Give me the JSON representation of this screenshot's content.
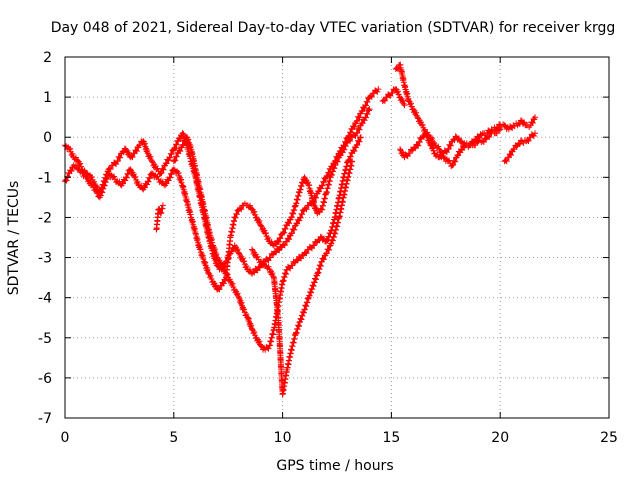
{
  "chart_data": {
    "type": "scatter",
    "title": "Day 048 of 2021, Sidereal Day-to-day VTEC variation (SDTVAR) for receiver krgg",
    "xlabel": "GPS time / hours",
    "ylabel": "SDTVAR / TECUs",
    "xlim": [
      0,
      25
    ],
    "ylim": [
      -7,
      2
    ],
    "xticks": [
      0,
      5,
      10,
      15,
      20,
      25
    ],
    "yticks": [
      -7,
      -6,
      -5,
      -4,
      -3,
      -2,
      -1,
      0,
      1,
      2
    ],
    "grid": true,
    "legend": "none",
    "marker": "plus",
    "color": "#ff0000",
    "series": [
      {
        "x": [
          0.0,
          0.2,
          0.4,
          0.6,
          0.8,
          1.0,
          1.2,
          1.4,
          1.6,
          1.8,
          2.0,
          2.2,
          2.4,
          2.6,
          2.8,
          3.0,
          3.2,
          3.4,
          3.6,
          3.8,
          4.0,
          4.2,
          4.4,
          4.6,
          4.8,
          5.0,
          5.2,
          5.4,
          5.6,
          5.8,
          6.0,
          6.2,
          6.4,
          6.6,
          6.8,
          7.0,
          7.2,
          7.4,
          7.6,
          7.8,
          8.0,
          8.2,
          8.4,
          8.6,
          8.8,
          9.0,
          9.2,
          9.4,
          9.6,
          9.8,
          10.0,
          10.2,
          10.4,
          10.6,
          10.8,
          11.0,
          11.2,
          11.4,
          11.6,
          11.8,
          12.0,
          12.2,
          12.4,
          12.6,
          12.8,
          13.0,
          13.2,
          13.4,
          13.6,
          13.8,
          14.0,
          14.2,
          14.4
        ],
        "y": [
          -0.2,
          -0.3,
          -0.5,
          -0.6,
          -0.8,
          -0.9,
          -1.0,
          -1.2,
          -1.4,
          -1.1,
          -0.8,
          -0.7,
          -0.6,
          -0.4,
          -0.3,
          -0.5,
          -0.4,
          -0.2,
          -0.1,
          -0.4,
          -0.6,
          -0.8,
          -0.9,
          -0.7,
          -0.5,
          -0.3,
          -0.1,
          0.1,
          -0.2,
          -0.6,
          -1.0,
          -1.5,
          -2.0,
          -2.5,
          -2.9,
          -3.2,
          -3.3,
          -3.1,
          -2.9,
          -2.7,
          -2.9,
          -3.1,
          -3.3,
          -3.4,
          -3.3,
          -3.2,
          -3.1,
          -3.0,
          -2.9,
          -2.8,
          -2.7,
          -2.6,
          -2.4,
          -2.2,
          -2.0,
          -1.8,
          -1.7,
          -1.6,
          -1.4,
          -1.2,
          -1.0,
          -0.8,
          -0.6,
          -0.4,
          -0.2,
          0.0,
          0.2,
          0.4,
          0.6,
          0.8,
          1.0,
          1.1,
          1.2
        ]
      },
      {
        "x": [
          0.0,
          0.2,
          0.4,
          0.6,
          0.8,
          1.0,
          1.2,
          1.4,
          1.6,
          1.8,
          2.0,
          2.2,
          2.4,
          2.6,
          2.8,
          3.0,
          3.2,
          3.4,
          3.6,
          3.8,
          4.0,
          4.2,
          4.4,
          4.6,
          4.8,
          5.0,
          5.2,
          5.4,
          5.6,
          5.8,
          6.0,
          6.2,
          6.4,
          6.6,
          6.8,
          7.0,
          7.2,
          7.4,
          7.6,
          7.8,
          8.0,
          8.2,
          8.4,
          8.6,
          8.8,
          9.0,
          9.2,
          9.4,
          9.6,
          9.8,
          10.0,
          10.2,
          10.4,
          10.6,
          10.8,
          11.0,
          11.2,
          11.4,
          11.6,
          11.8,
          12.0,
          12.2,
          12.4,
          12.6,
          12.8,
          13.0,
          13.2,
          13.4,
          13.6,
          13.8,
          14.0
        ],
        "y": [
          -1.1,
          -0.9,
          -0.7,
          -0.8,
          -0.9,
          -1.0,
          -1.2,
          -1.3,
          -1.5,
          -1.2,
          -0.9,
          -1.0,
          -1.1,
          -1.2,
          -1.0,
          -0.8,
          -1.0,
          -1.2,
          -1.3,
          -1.1,
          -0.9,
          -1.0,
          -1.1,
          -1.2,
          -1.0,
          -0.8,
          -0.9,
          -1.2,
          -1.6,
          -2.0,
          -2.4,
          -2.8,
          -3.1,
          -3.4,
          -3.6,
          -3.8,
          -3.7,
          -3.5,
          -2.5,
          -2.0,
          -1.8,
          -1.7,
          -1.7,
          -1.8,
          -2.0,
          -2.2,
          -2.4,
          -2.6,
          -2.7,
          -2.6,
          -2.4,
          -2.2,
          -2.0,
          -1.7,
          -1.3,
          -1.0,
          -1.2,
          -1.6,
          -1.9,
          -1.8,
          -1.4,
          -1.0,
          -0.7,
          -0.5,
          -0.3,
          -0.1,
          0.0,
          0.1,
          0.3,
          0.5,
          0.7
        ]
      },
      {
        "x": [
          5.0,
          5.2,
          5.4,
          5.6,
          5.8,
          6.0,
          6.2,
          6.4,
          6.6,
          6.8,
          7.0,
          7.2,
          7.4,
          7.6,
          7.8,
          8.0,
          8.2,
          8.4,
          8.6,
          8.8,
          9.0,
          9.2,
          9.4,
          9.6,
          9.8,
          10.0,
          10.2,
          10.4,
          10.6,
          10.8,
          11.0,
          11.2,
          11.4,
          11.6,
          11.8,
          12.0,
          12.2,
          12.4,
          12.6,
          12.8,
          13.0,
          13.2,
          13.4,
          13.6
        ],
        "y": [
          -0.6,
          -0.4,
          -0.2,
          0.0,
          -0.3,
          -0.8,
          -1.3,
          -1.8,
          -2.3,
          -2.7,
          -3.0,
          -3.2,
          -3.4,
          -3.6,
          -3.8,
          -4.0,
          -4.3,
          -4.5,
          -4.8,
          -5.0,
          -5.2,
          -5.3,
          -5.2,
          -4.8,
          -4.2,
          -3.6,
          -3.3,
          -3.2,
          -3.1,
          -3.0,
          -2.9,
          -2.8,
          -2.7,
          -2.6,
          -2.5,
          -2.6,
          -2.4,
          -2.0,
          -1.5,
          -1.0,
          -0.6,
          -0.4,
          -0.2,
          0.0
        ]
      },
      {
        "x": [
          8.6,
          8.8,
          9.0,
          9.2,
          9.4,
          9.6,
          9.8,
          10.0,
          10.2,
          10.4,
          10.6,
          10.8,
          11.0,
          11.2,
          11.4,
          11.6,
          11.8,
          12.0,
          12.2,
          12.4,
          12.6,
          12.8,
          13.0,
          13.2
        ],
        "y": [
          -2.8,
          -3.0,
          -3.1,
          -3.2,
          -3.3,
          -3.5,
          -4.5,
          -6.4,
          -5.8,
          -5.3,
          -4.9,
          -4.6,
          -4.3,
          -4.0,
          -3.7,
          -3.4,
          -3.1,
          -2.9,
          -2.7,
          -2.4,
          -2.0,
          -1.5,
          -1.0,
          -0.6
        ]
      },
      {
        "x": [
          15.2,
          15.4,
          15.6,
          15.8,
          16.0,
          16.2,
          16.4,
          16.6,
          16.8,
          17.0,
          17.2,
          17.4,
          17.6,
          17.8,
          18.0,
          18.2,
          18.4,
          18.6,
          18.8,
          19.0,
          19.2,
          19.4,
          19.6,
          19.8,
          20.0,
          20.2,
          20.4,
          20.6,
          20.8,
          21.0,
          21.2,
          21.4,
          21.6
        ],
        "y": [
          1.7,
          1.8,
          1.3,
          0.9,
          0.7,
          0.5,
          0.3,
          0.1,
          -0.2,
          -0.4,
          -0.5,
          -0.4,
          -0.3,
          -0.1,
          0.0,
          -0.1,
          -0.2,
          -0.2,
          -0.1,
          0.0,
          0.1,
          0.1,
          0.2,
          0.2,
          0.3,
          0.3,
          0.2,
          0.3,
          0.3,
          0.4,
          0.3,
          0.3,
          0.5
        ]
      },
      {
        "x": [
          15.4,
          15.6,
          15.8,
          16.0,
          16.2,
          16.4,
          16.6,
          16.8,
          17.0,
          17.2,
          17.4,
          17.6,
          17.8,
          18.0,
          18.2,
          18.4,
          18.6,
          18.8,
          19.0,
          19.2,
          19.4,
          19.6,
          19.8,
          20.0
        ],
        "y": [
          -0.3,
          -0.5,
          -0.4,
          -0.3,
          -0.2,
          0.0,
          0.1,
          0.0,
          -0.2,
          -0.3,
          -0.5,
          -0.6,
          -0.7,
          -0.5,
          -0.3,
          -0.2,
          -0.2,
          -0.2,
          -0.1,
          -0.1,
          0.0,
          0.1,
          0.1,
          0.2
        ]
      },
      {
        "x": [
          20.2,
          20.4,
          20.6,
          20.8,
          21.0,
          21.2,
          21.4,
          21.6
        ],
        "y": [
          -0.6,
          -0.5,
          -0.3,
          -0.2,
          -0.1,
          -0.1,
          0.0,
          0.1
        ]
      },
      {
        "x": [
          14.6,
          14.8,
          15.0,
          15.2,
          15.4,
          15.6
        ],
        "y": [
          0.9,
          1.0,
          1.1,
          1.2,
          1.0,
          0.8
        ]
      },
      {
        "x": [
          4.2,
          4.3,
          4.4,
          4.5
        ],
        "y": [
          -2.3,
          -1.8,
          -1.9,
          -1.7
        ]
      }
    ]
  }
}
